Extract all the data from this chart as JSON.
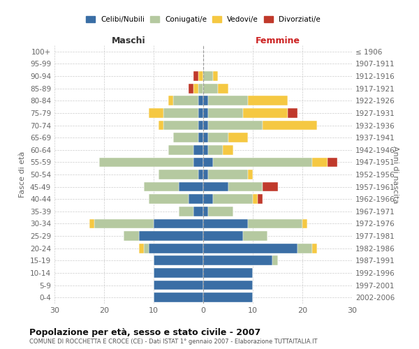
{
  "age_groups": [
    "0-4",
    "5-9",
    "10-14",
    "15-19",
    "20-24",
    "25-29",
    "30-34",
    "35-39",
    "40-44",
    "45-49",
    "50-54",
    "55-59",
    "60-64",
    "65-69",
    "70-74",
    "75-79",
    "80-84",
    "85-89",
    "90-94",
    "95-99",
    "100+"
  ],
  "birth_years": [
    "2002-2006",
    "1997-2001",
    "1992-1996",
    "1987-1991",
    "1982-1986",
    "1977-1981",
    "1972-1976",
    "1967-1971",
    "1962-1966",
    "1957-1961",
    "1952-1956",
    "1947-1951",
    "1942-1946",
    "1937-1941",
    "1932-1936",
    "1927-1931",
    "1922-1926",
    "1917-1921",
    "1912-1916",
    "1907-1911",
    "≤ 1906"
  ],
  "male": {
    "celibi": [
      10,
      10,
      10,
      10,
      11,
      13,
      10,
      2,
      3,
      5,
      1,
      2,
      2,
      1,
      1,
      1,
      1,
      0,
      0,
      0,
      0
    ],
    "coniugati": [
      0,
      0,
      0,
      0,
      1,
      3,
      12,
      3,
      8,
      7,
      8,
      19,
      5,
      5,
      7,
      7,
      5,
      1,
      0,
      0,
      0
    ],
    "vedovi": [
      0,
      0,
      0,
      0,
      1,
      0,
      1,
      0,
      0,
      0,
      0,
      0,
      0,
      0,
      1,
      3,
      1,
      1,
      1,
      0,
      0
    ],
    "divorziati": [
      0,
      0,
      0,
      0,
      0,
      0,
      0,
      0,
      0,
      0,
      0,
      0,
      0,
      0,
      0,
      0,
      0,
      1,
      1,
      0,
      0
    ]
  },
  "female": {
    "nubili": [
      10,
      10,
      10,
      14,
      19,
      8,
      9,
      1,
      2,
      5,
      1,
      2,
      1,
      1,
      1,
      1,
      1,
      0,
      0,
      0,
      0
    ],
    "coniugate": [
      0,
      0,
      0,
      1,
      3,
      5,
      11,
      5,
      8,
      7,
      8,
      20,
      3,
      4,
      11,
      7,
      8,
      3,
      2,
      0,
      0
    ],
    "vedove": [
      0,
      0,
      0,
      0,
      1,
      0,
      1,
      0,
      1,
      0,
      1,
      3,
      2,
      4,
      11,
      9,
      8,
      2,
      1,
      0,
      0
    ],
    "divorziate": [
      0,
      0,
      0,
      0,
      0,
      0,
      0,
      0,
      1,
      3,
      0,
      2,
      0,
      0,
      0,
      2,
      0,
      0,
      0,
      0,
      0
    ]
  },
  "colors": {
    "celibi": "#3a6ea5",
    "coniugati": "#b5c9a0",
    "vedovi": "#f5c842",
    "divorziati": "#c0392b"
  },
  "title": "Popolazione per età, sesso e stato civile - 2007",
  "subtitle": "COMUNE DI ROCCHETTA E CROCE (CE) - Dati ISTAT 1° gennaio 2007 - Elaborazione TUTTAITALIA.IT",
  "xlabel_left": "Maschi",
  "xlabel_right": "Femmine",
  "ylabel_left": "Fasce di età",
  "ylabel_right": "Anni di nascita",
  "xlim": 30,
  "background_color": "#ffffff",
  "grid_color": "#cccccc"
}
